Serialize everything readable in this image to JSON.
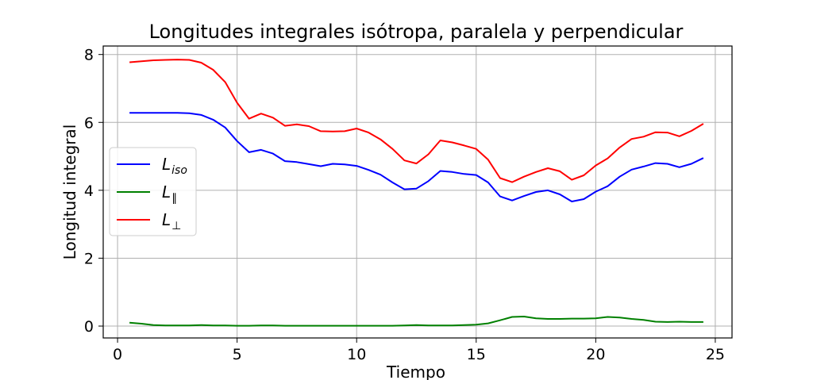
{
  "chart_data": {
    "type": "line",
    "title": "Longitudes integrales isótropa, paralela y perpendicular",
    "xlabel": "Tiempo",
    "ylabel": "Longitud integral",
    "xlim": [
      -0.6,
      25.7
    ],
    "ylim": [
      -0.35,
      8.25
    ],
    "xticks": [
      0,
      5,
      10,
      15,
      20,
      25
    ],
    "yticks": [
      0,
      2,
      4,
      6,
      8
    ],
    "grid": true,
    "legend_position": "center-left",
    "x": [
      0.5,
      1.0,
      1.5,
      2.0,
      2.5,
      3.0,
      3.5,
      4.0,
      4.5,
      5.0,
      5.5,
      6.0,
      6.5,
      7.0,
      7.5,
      8.0,
      8.5,
      9.0,
      9.5,
      10.0,
      10.5,
      11.0,
      11.5,
      12.0,
      12.5,
      13.0,
      13.5,
      14.0,
      14.5,
      15.0,
      15.5,
      16.0,
      16.5,
      17.0,
      17.5,
      18.0,
      18.5,
      19.0,
      19.5,
      20.0,
      20.5,
      21.0,
      21.5,
      22.0,
      22.5,
      23.0,
      23.5,
      24.0,
      24.5
    ],
    "series": [
      {
        "name": "L",
        "sub": "iso",
        "color": "#0000ff",
        "values": [
          6.28,
          6.28,
          6.28,
          6.28,
          6.28,
          6.27,
          6.22,
          6.08,
          5.85,
          5.45,
          5.12,
          5.19,
          5.08,
          4.86,
          4.83,
          4.77,
          4.71,
          4.78,
          4.76,
          4.72,
          4.6,
          4.46,
          4.23,
          4.03,
          4.05,
          4.27,
          4.57,
          4.54,
          4.48,
          4.45,
          4.23,
          3.82,
          3.7,
          3.83,
          3.95,
          4.0,
          3.88,
          3.67,
          3.74,
          3.96,
          4.12,
          4.4,
          4.61,
          4.7,
          4.8,
          4.78,
          4.68,
          4.78,
          4.95
        ]
      },
      {
        "name": "L",
        "sub": "∥",
        "color": "#008000",
        "values": [
          0.1,
          0.07,
          0.03,
          0.02,
          0.02,
          0.02,
          0.03,
          0.02,
          0.02,
          0.01,
          0.01,
          0.02,
          0.02,
          0.01,
          0.01,
          0.01,
          0.01,
          0.01,
          0.01,
          0.01,
          0.01,
          0.01,
          0.01,
          0.02,
          0.03,
          0.02,
          0.02,
          0.02,
          0.03,
          0.04,
          0.08,
          0.17,
          0.27,
          0.28,
          0.23,
          0.21,
          0.21,
          0.22,
          0.22,
          0.23,
          0.27,
          0.25,
          0.21,
          0.18,
          0.13,
          0.12,
          0.13,
          0.12,
          0.12
        ]
      },
      {
        "name": "L",
        "sub": "⊥",
        "color": "#ff0000",
        "values": [
          7.77,
          7.8,
          7.83,
          7.84,
          7.85,
          7.84,
          7.76,
          7.55,
          7.19,
          6.58,
          6.11,
          6.26,
          6.14,
          5.9,
          5.94,
          5.89,
          5.74,
          5.73,
          5.74,
          5.82,
          5.7,
          5.5,
          5.22,
          4.88,
          4.79,
          5.06,
          5.47,
          5.41,
          5.32,
          5.22,
          4.9,
          4.36,
          4.24,
          4.4,
          4.54,
          4.65,
          4.56,
          4.31,
          4.44,
          4.73,
          4.94,
          5.26,
          5.51,
          5.58,
          5.71,
          5.7,
          5.59,
          5.75,
          5.96
        ]
      }
    ]
  }
}
